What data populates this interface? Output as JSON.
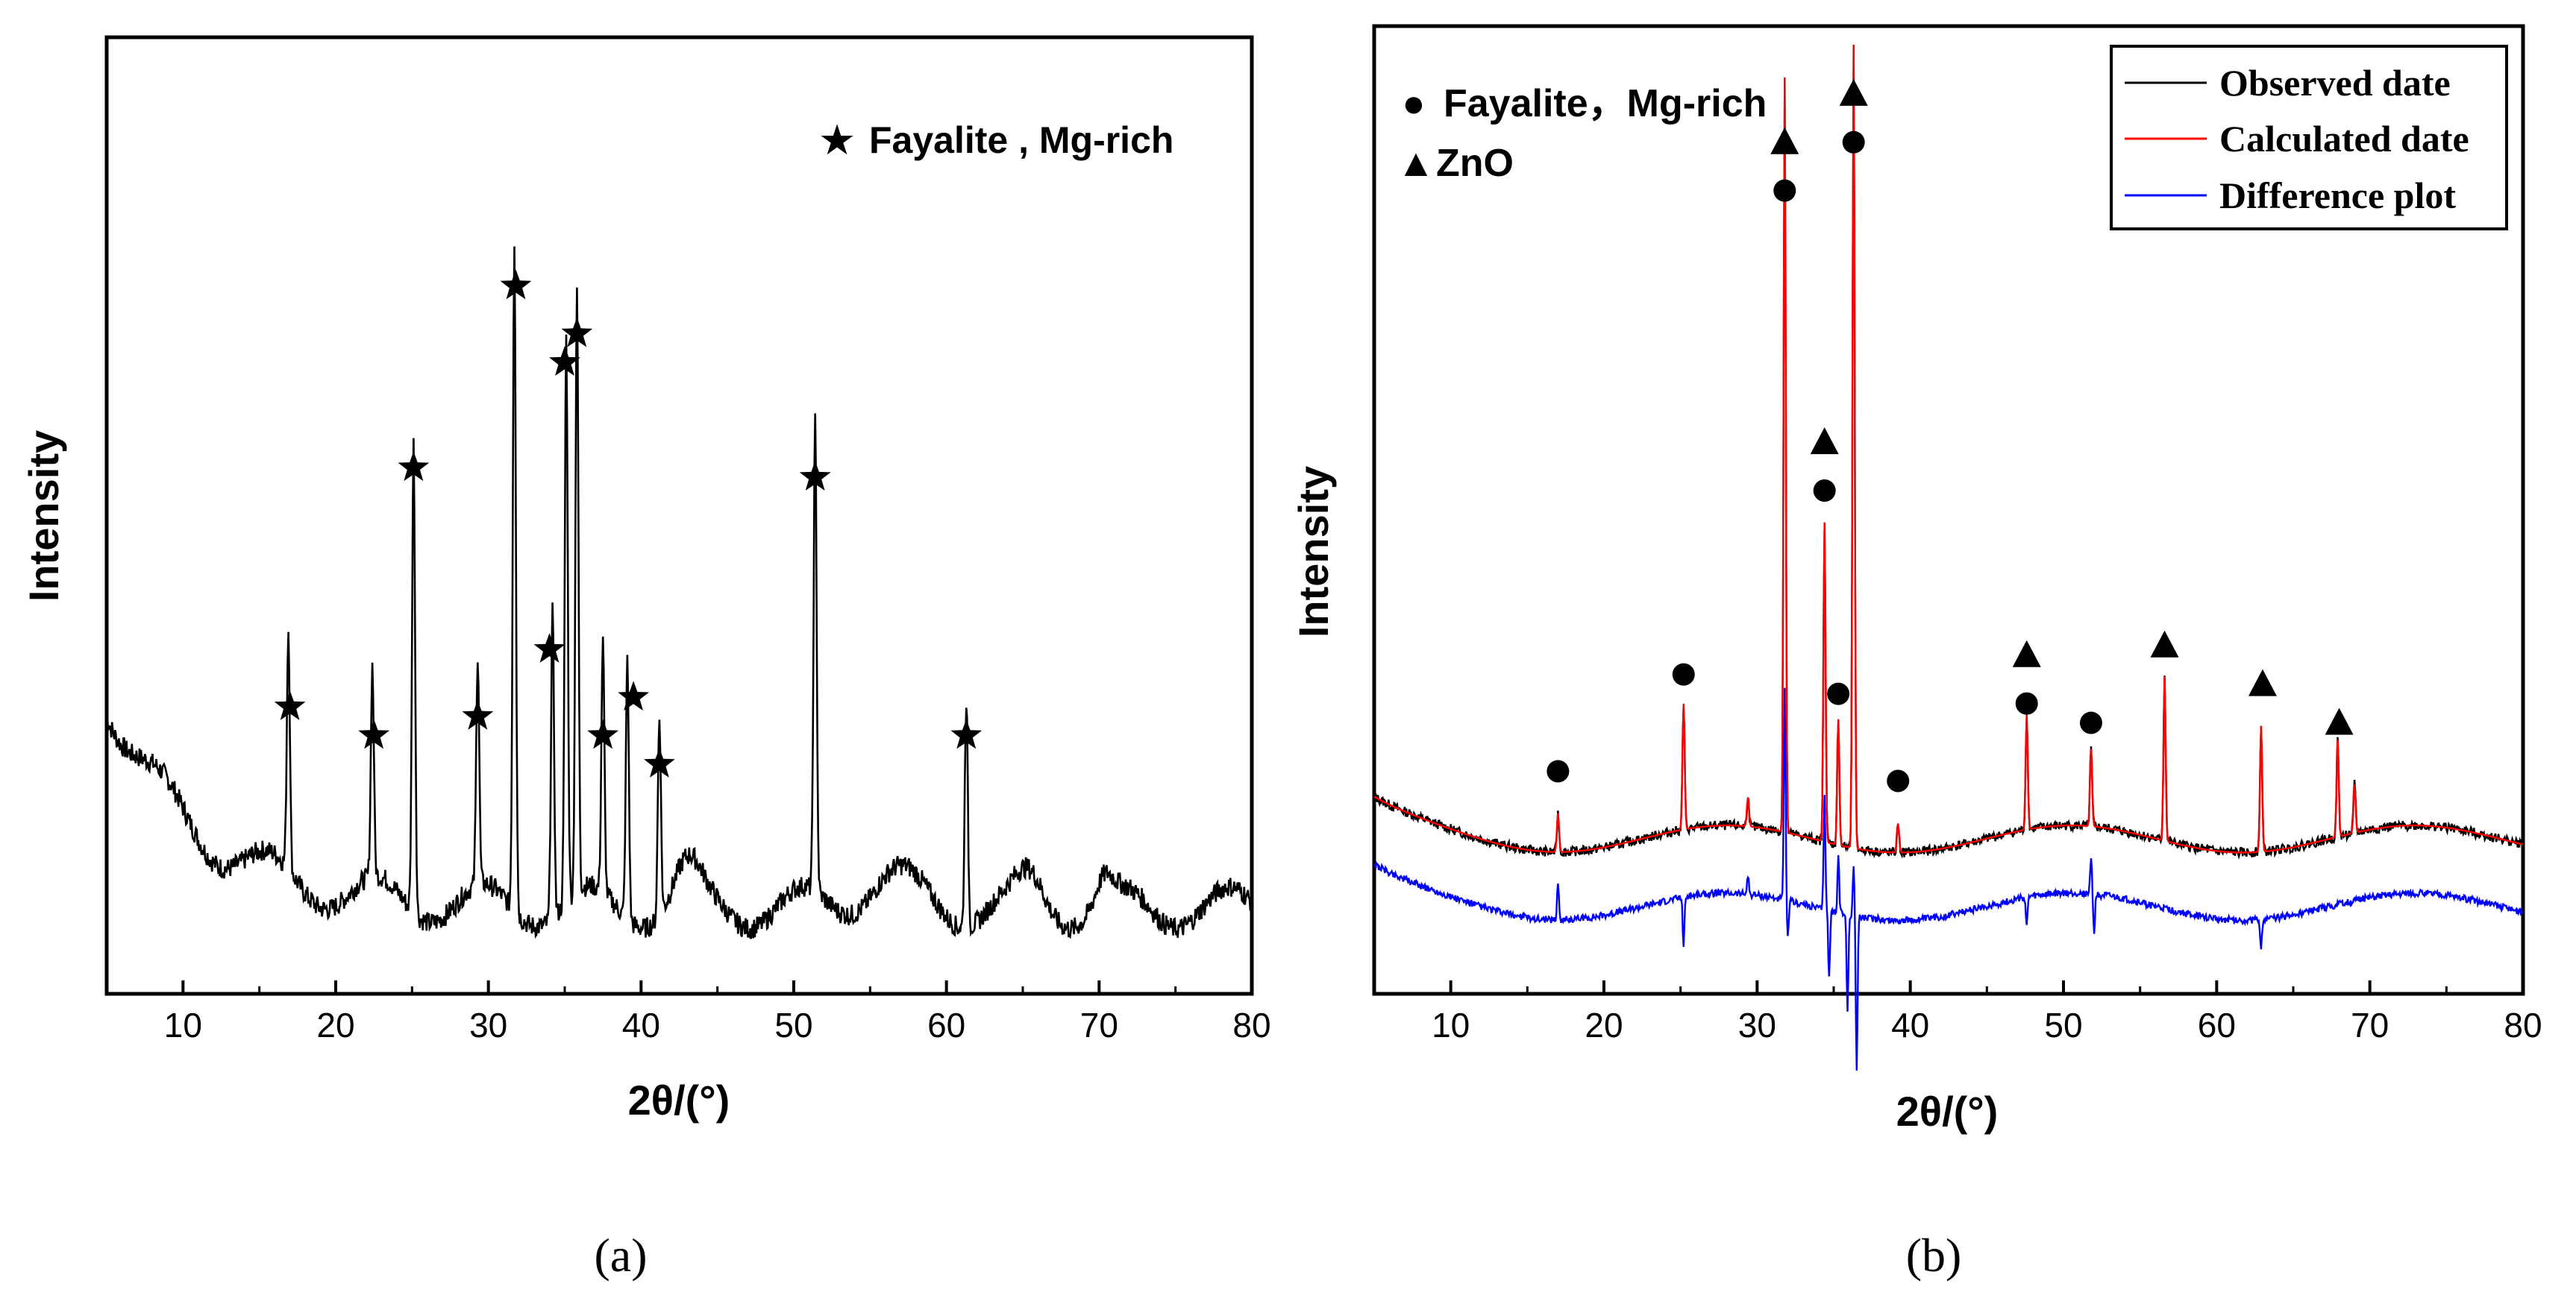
{
  "chart_data": [
    {
      "panel": "(a)",
      "type": "line",
      "xlabel": "2θ/(°)",
      "ylabel": "Intensity",
      "xlim": [
        5,
        80
      ],
      "ylim": [
        0,
        100
      ],
      "xticks": [
        10,
        20,
        30,
        40,
        50,
        60,
        70,
        80
      ],
      "legend": [
        {
          "symbol": "★",
          "label": "Fayalite , Mg-rich"
        }
      ],
      "peaks": [
        {
          "x": 16.9,
          "y": 25
        },
        {
          "x": 22.4,
          "y": 22
        },
        {
          "x": 25.1,
          "y": 49
        },
        {
          "x": 29.3,
          "y": 24
        },
        {
          "x": 31.7,
          "y": 70
        },
        {
          "x": 34.2,
          "y": 32
        },
        {
          "x": 35.1,
          "y": 59
        },
        {
          "x": 35.8,
          "y": 63
        },
        {
          "x": 37.5,
          "y": 26
        },
        {
          "x": 39.1,
          "y": 27
        },
        {
          "x": 41.2,
          "y": 21
        },
        {
          "x": 51.4,
          "y": 49
        },
        {
          "x": 61.3,
          "y": 24
        }
      ],
      "markers": [
        {
          "symbol": "★",
          "x": 17.0,
          "y": 30
        },
        {
          "symbol": "★",
          "x": 22.5,
          "y": 27
        },
        {
          "symbol": "★",
          "x": 25.1,
          "y": 55
        },
        {
          "symbol": "★",
          "x": 29.3,
          "y": 29
        },
        {
          "symbol": "★",
          "x": 31.8,
          "y": 74
        },
        {
          "symbol": "★",
          "x": 34.0,
          "y": 36
        },
        {
          "symbol": "★",
          "x": 35.0,
          "y": 66
        },
        {
          "symbol": "★",
          "x": 35.8,
          "y": 69
        },
        {
          "symbol": "★",
          "x": 37.5,
          "y": 27
        },
        {
          "symbol": "★",
          "x": 39.5,
          "y": 31
        },
        {
          "symbol": "★",
          "x": 41.2,
          "y": 24
        },
        {
          "symbol": "★",
          "x": 51.4,
          "y": 54
        },
        {
          "symbol": "★",
          "x": 61.3,
          "y": 27
        }
      ]
    },
    {
      "panel": "(b)",
      "type": "line",
      "xlabel": "2θ/(°)",
      "ylabel": "Intensity",
      "xlim": [
        5,
        80
      ],
      "ylim": [
        0,
        100
      ],
      "xticks": [
        10,
        20,
        30,
        40,
        50,
        60,
        70,
        80
      ],
      "symbol_legend": [
        {
          "symbol": "●",
          "label": "Fayalite，Mg-rich"
        },
        {
          "symbol": "▲",
          "label": "ZnO"
        }
      ],
      "series": [
        {
          "name": "Observed date",
          "color": "#000000",
          "baseline": 16,
          "peak_scale": 1.0,
          "noise": 0.5
        },
        {
          "name": "Calculated date",
          "color": "#ff0000",
          "baseline": 16,
          "peak_scale": 1.0,
          "noise": 0
        },
        {
          "name": "Difference plot",
          "color": "#0000ff",
          "baseline": 9,
          "peak_scale": 0.0,
          "noise": 0.35
        }
      ],
      "peaks": [
        {
          "x": 17.0,
          "y": 4
        },
        {
          "x": 25.2,
          "y": 13
        },
        {
          "x": 29.4,
          "y": 3
        },
        {
          "x": 31.8,
          "y": 78
        },
        {
          "x": 34.4,
          "y": 33
        },
        {
          "x": 35.3,
          "y": 13
        },
        {
          "x": 36.3,
          "y": 83
        },
        {
          "x": 39.2,
          "y": 3
        },
        {
          "x": 47.6,
          "y": 12
        },
        {
          "x": 51.8,
          "y": 8
        },
        {
          "x": 56.6,
          "y": 17
        },
        {
          "x": 62.9,
          "y": 13
        },
        {
          "x": 67.9,
          "y": 10
        },
        {
          "x": 69.0,
          "y": 5
        }
      ],
      "difference_spikes": [
        {
          "x": 17.0,
          "y": 4
        },
        {
          "x": 25.2,
          "y": -5
        },
        {
          "x": 29.4,
          "y": 2
        },
        {
          "x": 31.8,
          "y": 22
        },
        {
          "x": 32.0,
          "y": -4
        },
        {
          "x": 34.4,
          "y": 12
        },
        {
          "x": 34.7,
          "y": -7
        },
        {
          "x": 35.3,
          "y": 6
        },
        {
          "x": 35.9,
          "y": -10
        },
        {
          "x": 36.3,
          "y": 5
        },
        {
          "x": 36.5,
          "y": -16
        },
        {
          "x": 47.6,
          "y": -3
        },
        {
          "x": 51.8,
          "y": 4
        },
        {
          "x": 52.0,
          "y": -4
        },
        {
          "x": 62.9,
          "y": -3
        }
      ],
      "markers": [
        {
          "symbol": "●",
          "x": 17.0,
          "y": 23
        },
        {
          "symbol": "●",
          "x": 25.2,
          "y": 33
        },
        {
          "symbol": "▲",
          "x": 31.8,
          "y": 88
        },
        {
          "symbol": "●",
          "x": 31.8,
          "y": 83
        },
        {
          "symbol": "▲",
          "x": 34.4,
          "y": 57
        },
        {
          "symbol": "●",
          "x": 34.4,
          "y": 52
        },
        {
          "symbol": "●",
          "x": 35.3,
          "y": 31
        },
        {
          "symbol": "▲",
          "x": 36.3,
          "y": 93
        },
        {
          "symbol": "●",
          "x": 36.3,
          "y": 88
        },
        {
          "symbol": "●",
          "x": 39.2,
          "y": 22
        },
        {
          "symbol": "▲",
          "x": 47.6,
          "y": 35
        },
        {
          "symbol": "●",
          "x": 47.6,
          "y": 30
        },
        {
          "symbol": "●",
          "x": 51.8,
          "y": 28
        },
        {
          "symbol": "▲",
          "x": 56.6,
          "y": 36
        },
        {
          "symbol": "▲",
          "x": 63.0,
          "y": 32
        },
        {
          "symbol": "▲",
          "x": 68.0,
          "y": 28
        }
      ]
    }
  ]
}
